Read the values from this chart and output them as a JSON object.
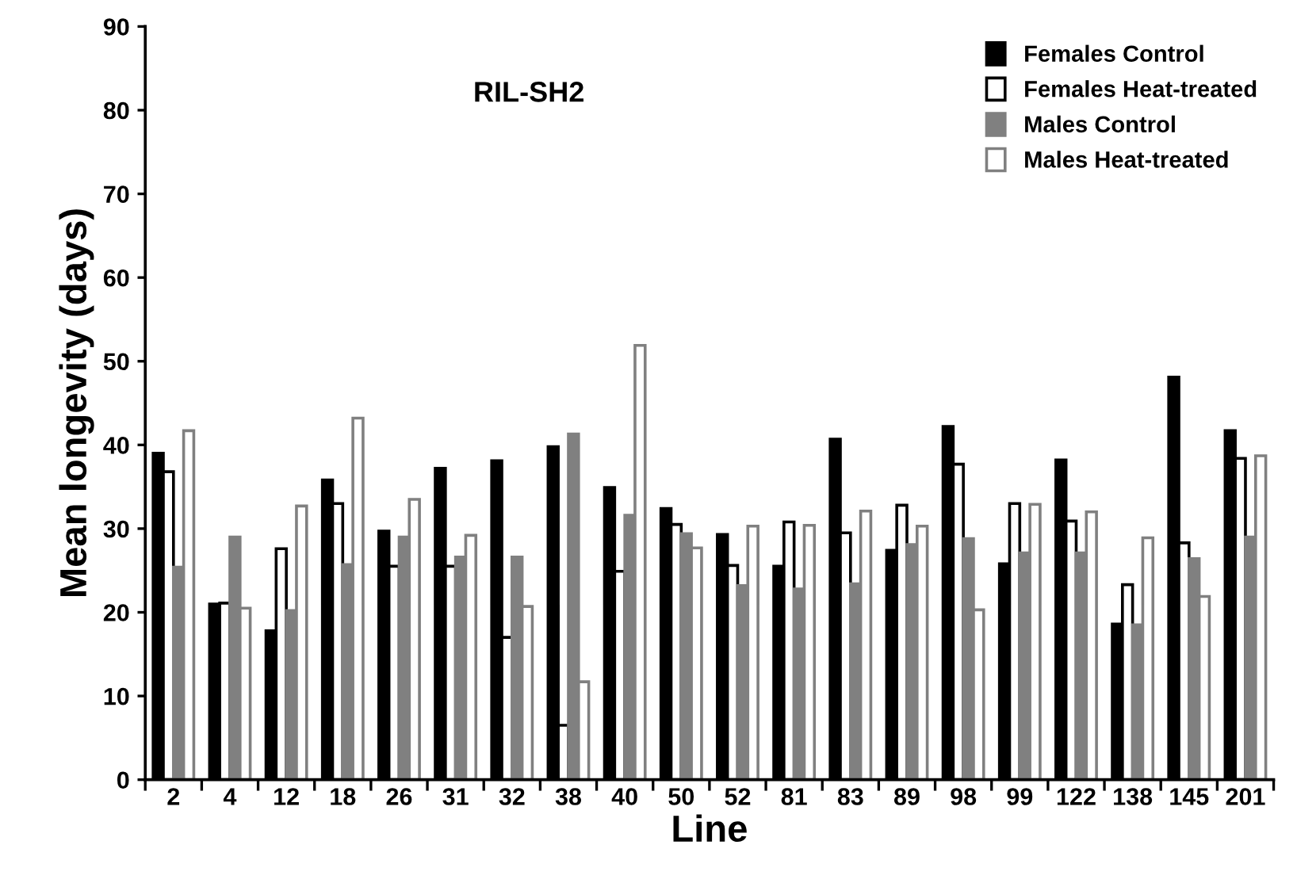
{
  "chart_data": {
    "type": "bar",
    "title": "RIL-SH2",
    "xlabel": "Line",
    "ylabel": "Mean longevity (days)",
    "categories": [
      "2",
      "4",
      "12",
      "18",
      "26",
      "31",
      "32",
      "38",
      "40",
      "50",
      "52",
      "81",
      "83",
      "89",
      "98",
      "99",
      "122",
      "138",
      "145",
      "201"
    ],
    "series": [
      {
        "name": "Females Control",
        "color": "#000000",
        "values": [
          39,
          21,
          17.8,
          35.8,
          29.7,
          37.2,
          38.1,
          39.8,
          34.9,
          32.4,
          29.3,
          25.5,
          40.7,
          27.4,
          42.2,
          25.8,
          38.2,
          18.6,
          48.1,
          41.7
        ]
      },
      {
        "name": "Females Heat-treated",
        "color": "#ffffff",
        "values": [
          36.8,
          21.1,
          27.6,
          33,
          25.5,
          25.5,
          17,
          6.5,
          24.9,
          30.5,
          25.6,
          30.8,
          29.5,
          32.8,
          37.7,
          33,
          30.9,
          23.3,
          28.3,
          38.4
        ]
      },
      {
        "name": "Males Control",
        "color": "#808080",
        "values": [
          25.4,
          29,
          20.2,
          25.7,
          29,
          26.6,
          26.6,
          41.3,
          31.6,
          29.4,
          23.2,
          22.8,
          23.4,
          28.1,
          28.8,
          27.1,
          27.1,
          18.5,
          26.4,
          29
        ]
      },
      {
        "name": "Males Heat-treated",
        "color": "#ffffff",
        "values": [
          41.7,
          20.5,
          32.7,
          43.2,
          33.5,
          29.2,
          20.7,
          11.7,
          51.9,
          27.7,
          30.3,
          30.4,
          32.1,
          30.3,
          20.3,
          32.9,
          32,
          28.9,
          21.9,
          38.7
        ]
      }
    ],
    "ylim": [
      0,
      90
    ],
    "yticks": [
      0,
      10,
      20,
      30,
      40,
      50,
      60,
      70,
      80,
      90
    ],
    "grid": false,
    "legend": "top right"
  }
}
